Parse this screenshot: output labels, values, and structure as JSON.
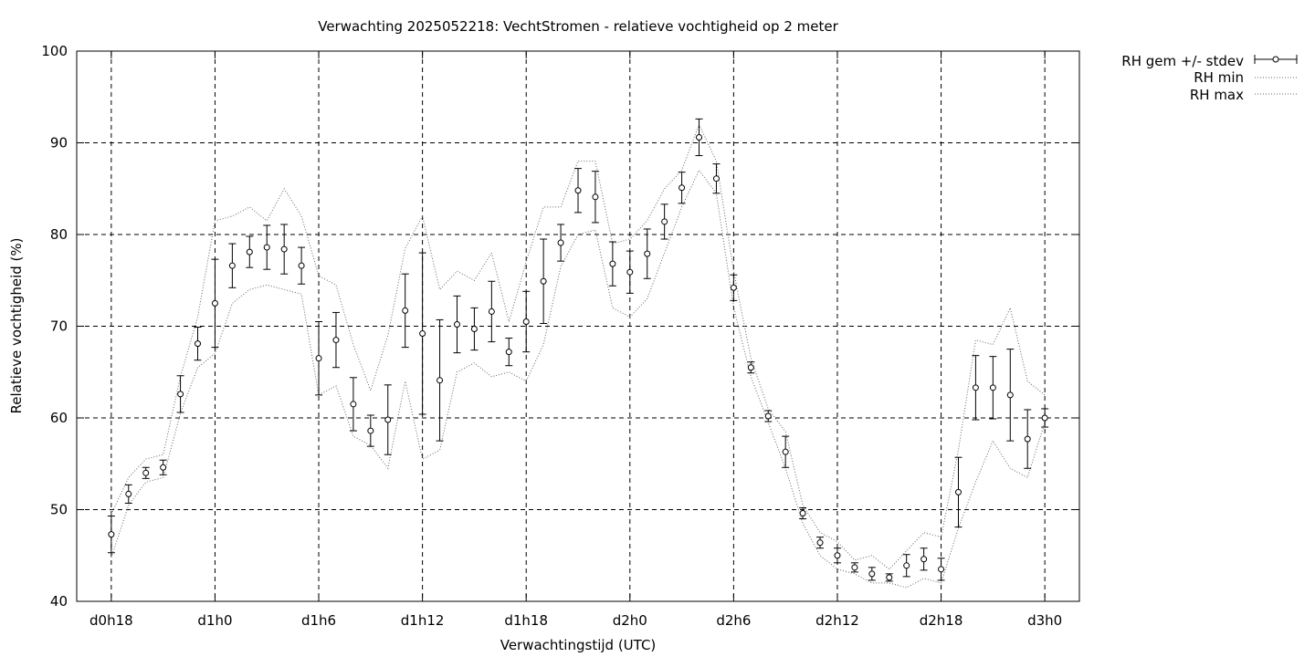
{
  "chart_data": {
    "type": "line",
    "title": "Verwachting 2025052218: VechtStromen - relatieve vochtigheid op 2 meter",
    "xlabel": "Verwachtingstijd (UTC)",
    "ylabel": "Relatieve vochtigheid (%)",
    "xlim": [
      -2,
      56
    ],
    "ylim": [
      40,
      100
    ],
    "yticks": [
      40,
      50,
      60,
      70,
      80,
      90,
      100
    ],
    "xticks": [
      {
        "x": 0,
        "label": "d0h18"
      },
      {
        "x": 6,
        "label": "d1h0"
      },
      {
        "x": 12,
        "label": "d1h6"
      },
      {
        "x": 18,
        "label": "d1h12"
      },
      {
        "x": 24,
        "label": "d1h18"
      },
      {
        "x": 30,
        "label": "d2h0"
      },
      {
        "x": 36,
        "label": "d2h6"
      },
      {
        "x": 42,
        "label": "d2h12"
      },
      {
        "x": 48,
        "label": "d2h18"
      },
      {
        "x": 54,
        "label": "d3h0"
      }
    ],
    "grid": true,
    "legend": "top-right outside",
    "x": [
      0,
      1,
      2,
      3,
      4,
      5,
      6,
      7,
      8,
      9,
      10,
      11,
      12,
      13,
      14,
      15,
      16,
      17,
      18,
      19,
      20,
      21,
      22,
      23,
      24,
      25,
      26,
      27,
      28,
      29,
      30,
      31,
      32,
      33,
      34,
      35,
      36,
      37,
      38,
      39,
      40,
      41,
      42,
      43,
      44,
      45,
      46,
      47,
      48,
      49,
      50,
      51,
      52,
      53,
      54
    ],
    "series": [
      {
        "name": "RH gem +/- stdev",
        "style": "points-errorbars",
        "values": [
          47.3,
          51.7,
          54.0,
          54.6,
          62.6,
          68.1,
          72.5,
          76.6,
          78.1,
          78.6,
          78.4,
          76.6,
          66.5,
          68.5,
          61.5,
          58.6,
          59.8,
          71.7,
          69.2,
          64.1,
          70.2,
          69.7,
          71.6,
          67.2,
          70.5,
          74.9,
          79.1,
          84.8,
          84.1,
          76.8,
          75.9,
          77.9,
          81.4,
          85.1,
          90.6,
          86.1,
          74.2,
          65.5,
          60.2,
          56.3,
          49.6,
          46.4,
          45.0,
          43.7,
          43.0,
          42.6,
          43.9,
          44.6,
          43.5,
          51.9,
          63.3,
          63.3,
          62.5,
          57.7,
          60.0
        ],
        "stdev": [
          2.0,
          1.0,
          0.6,
          0.8,
          2.0,
          1.8,
          4.8,
          2.4,
          1.7,
          2.4,
          2.7,
          2.0,
          4.0,
          3.0,
          2.9,
          1.7,
          3.8,
          4.0,
          8.8,
          6.6,
          3.1,
          2.3,
          3.3,
          1.5,
          3.3,
          4.6,
          2.0,
          2.4,
          2.8,
          2.4,
          2.3,
          2.7,
          1.9,
          1.7,
          2.0,
          1.6,
          1.4,
          0.6,
          0.6,
          1.7,
          0.6,
          0.6,
          0.8,
          0.5,
          0.7,
          0.4,
          1.2,
          1.2,
          1.2,
          3.8,
          3.5,
          3.4,
          5.0,
          3.2,
          1.0
        ]
      },
      {
        "name": "RH min",
        "style": "dotted",
        "values": [
          44.8,
          50.5,
          53.0,
          53.5,
          60.5,
          65.5,
          67.0,
          72.5,
          74.0,
          74.5,
          74.0,
          73.5,
          62.5,
          63.5,
          58.0,
          57.0,
          54.5,
          64.0,
          55.5,
          56.5,
          65.0,
          66.0,
          64.5,
          65.0,
          64.0,
          68.0,
          76.5,
          80.0,
          80.5,
          72.0,
          71.0,
          73.0,
          78.0,
          83.0,
          87.0,
          84.5,
          72.0,
          64.5,
          59.5,
          54.5,
          48.5,
          45.0,
          43.5,
          43.0,
          42.0,
          42.0,
          41.5,
          42.5,
          42.0,
          48.0,
          53.0,
          57.5,
          54.5,
          53.5,
          59.5
        ]
      },
      {
        "name": "RH max",
        "style": "dotted",
        "values": [
          49.5,
          53.5,
          55.5,
          56.0,
          64.5,
          71.0,
          81.5,
          82.0,
          83.0,
          81.5,
          85.0,
          82.0,
          75.5,
          74.5,
          68.0,
          63.0,
          69.0,
          78.5,
          82.0,
          74.0,
          76.0,
          75.0,
          78.0,
          70.5,
          77.0,
          83.0,
          83.0,
          88.0,
          88.0,
          79.0,
          79.5,
          81.5,
          85.0,
          87.0,
          92.0,
          88.0,
          76.0,
          66.5,
          61.0,
          58.5,
          50.5,
          47.5,
          46.5,
          44.5,
          45.0,
          43.5,
          45.5,
          47.5,
          47.0,
          56.5,
          68.5,
          68.0,
          72.0,
          64.0,
          62.5
        ]
      }
    ]
  }
}
